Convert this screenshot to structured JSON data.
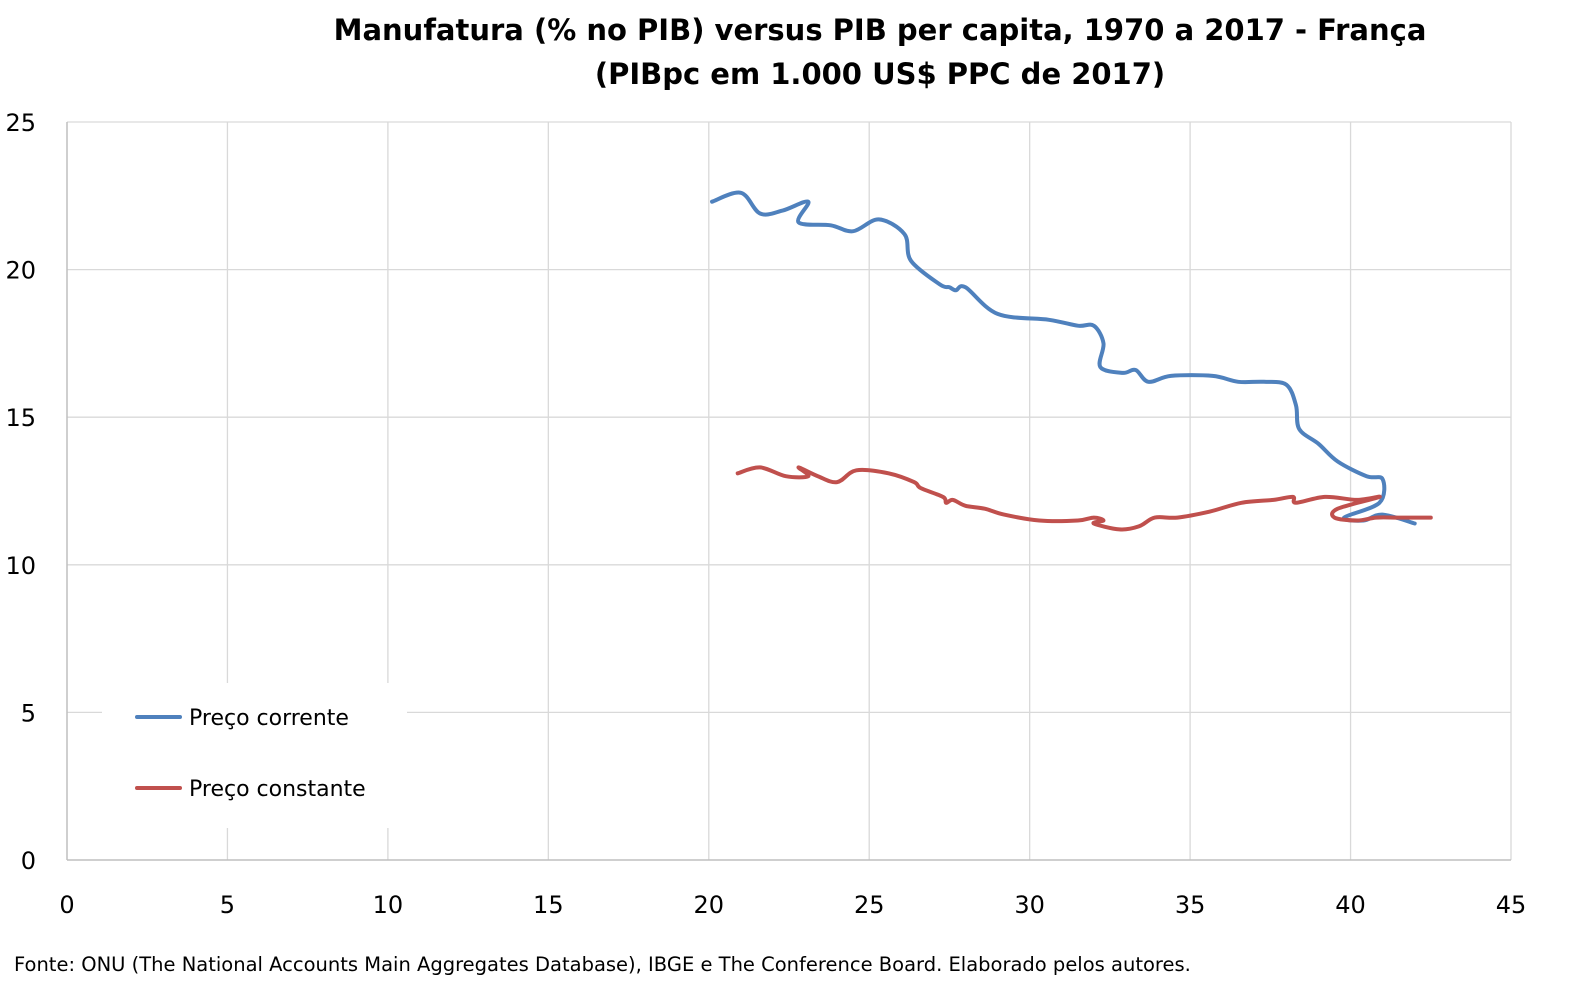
{
  "chart_data": {
    "type": "line",
    "title": "Manufatura (% no PIB) versus PIB per capita, 1970 a 2017 - França",
    "subtitle": "(PIBpc em 1.000 US$ PPC de 2017)",
    "xlim": [
      0,
      45
    ],
    "ylim": [
      0,
      25
    ],
    "x_ticks": [
      "0",
      "5",
      "10",
      "15",
      "20",
      "25",
      "30",
      "35",
      "40",
      "45"
    ],
    "y_ticks": [
      "0",
      "5",
      "10",
      "15",
      "20",
      "25"
    ],
    "grid": true,
    "legend_position": "lower-left",
    "series": [
      {
        "name": "Preço corrente",
        "color": "#4F81BD",
        "points": [
          [
            20.1,
            22.3
          ],
          [
            21.0,
            22.6
          ],
          [
            21.6,
            21.9
          ],
          [
            22.3,
            22.0
          ],
          [
            23.1,
            22.3
          ],
          [
            22.8,
            21.6
          ],
          [
            23.8,
            21.5
          ],
          [
            24.5,
            21.3
          ],
          [
            25.3,
            21.7
          ],
          [
            26.1,
            21.2
          ],
          [
            26.3,
            20.3
          ],
          [
            27.2,
            19.5
          ],
          [
            27.5,
            19.4
          ],
          [
            27.7,
            19.3
          ],
          [
            28.0,
            19.4
          ],
          [
            29.0,
            18.5
          ],
          [
            30.6,
            18.3
          ],
          [
            31.5,
            18.1
          ],
          [
            32.0,
            18.1
          ],
          [
            32.3,
            17.5
          ],
          [
            32.2,
            16.7
          ],
          [
            32.9,
            16.5
          ],
          [
            33.3,
            16.6
          ],
          [
            33.7,
            16.2
          ],
          [
            34.4,
            16.4
          ],
          [
            35.7,
            16.4
          ],
          [
            36.5,
            16.2
          ],
          [
            37.3,
            16.2
          ],
          [
            38.0,
            16.1
          ],
          [
            38.3,
            15.4
          ],
          [
            38.4,
            14.6
          ],
          [
            39.0,
            14.1
          ],
          [
            39.6,
            13.5
          ],
          [
            40.5,
            13.0
          ],
          [
            41.0,
            12.9
          ],
          [
            40.9,
            12.1
          ],
          [
            39.8,
            11.6
          ],
          [
            40.4,
            11.5
          ],
          [
            41.0,
            11.7
          ],
          [
            42.0,
            11.4
          ]
        ]
      },
      {
        "name": "Preço constante",
        "color": "#C0504D",
        "points": [
          [
            20.9,
            13.1
          ],
          [
            21.6,
            13.3
          ],
          [
            22.4,
            13.0
          ],
          [
            23.1,
            13.0
          ],
          [
            22.8,
            13.3
          ],
          [
            23.4,
            13.0
          ],
          [
            24.0,
            12.8
          ],
          [
            24.6,
            13.2
          ],
          [
            25.6,
            13.1
          ],
          [
            26.4,
            12.8
          ],
          [
            26.6,
            12.6
          ],
          [
            27.3,
            12.3
          ],
          [
            27.4,
            12.1
          ],
          [
            27.6,
            12.2
          ],
          [
            28.0,
            12.0
          ],
          [
            28.6,
            11.9
          ],
          [
            29.2,
            11.7
          ],
          [
            30.3,
            11.5
          ],
          [
            31.5,
            11.5
          ],
          [
            32.0,
            11.6
          ],
          [
            32.3,
            11.5
          ],
          [
            32.0,
            11.4
          ],
          [
            32.8,
            11.2
          ],
          [
            33.4,
            11.3
          ],
          [
            33.9,
            11.6
          ],
          [
            34.6,
            11.6
          ],
          [
            35.6,
            11.8
          ],
          [
            36.6,
            12.1
          ],
          [
            37.6,
            12.2
          ],
          [
            38.2,
            12.3
          ],
          [
            38.3,
            12.1
          ],
          [
            39.2,
            12.3
          ],
          [
            40.2,
            12.2
          ],
          [
            40.9,
            12.3
          ],
          [
            39.6,
            11.9
          ],
          [
            39.5,
            11.6
          ],
          [
            40.2,
            11.5
          ],
          [
            40.8,
            11.6
          ],
          [
            41.5,
            11.6
          ],
          [
            42.5,
            11.6
          ]
        ]
      }
    ]
  },
  "source_note": "Fonte: ONU (The National Accounts Main Aggregates Database), IBGE e The Conference Board. Elaborado pelos autores."
}
